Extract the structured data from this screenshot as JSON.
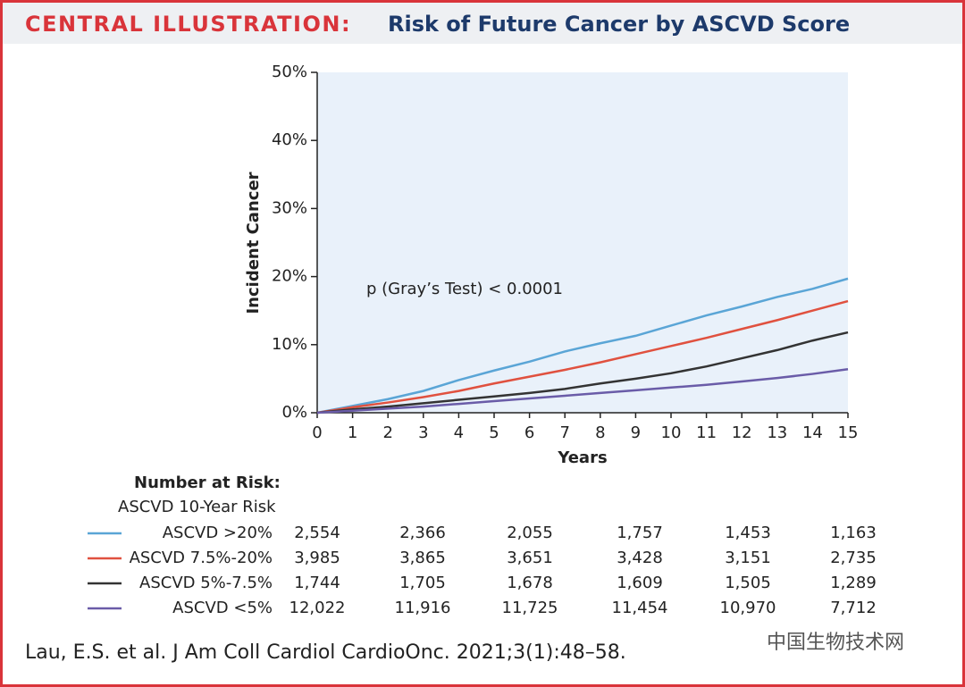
{
  "chart_data": {
    "type": "line",
    "title_label": "CENTRAL ILLUSTRATION:",
    "title": "Risk of Future Cancer by ASCVD Score",
    "x_label": "Years",
    "y_label": "Incident Cancer",
    "annotation": "p (Gray’s Test) < 0.0001",
    "x": [
      0,
      1,
      2,
      3,
      4,
      5,
      6,
      7,
      8,
      9,
      10,
      11,
      12,
      13,
      14,
      15
    ],
    "xlim": [
      0,
      15
    ],
    "xticks": [
      0,
      1,
      2,
      3,
      4,
      5,
      6,
      7,
      8,
      9,
      10,
      11,
      12,
      13,
      14,
      15
    ],
    "ylim": [
      0,
      50
    ],
    "yticks": [
      {
        "value": 0,
        "label": "0%"
      },
      {
        "value": 10,
        "label": "10%"
      },
      {
        "value": 20,
        "label": "20%"
      },
      {
        "value": 30,
        "label": "30%"
      },
      {
        "value": 40,
        "label": "40%"
      },
      {
        "value": 50,
        "label": "50%"
      }
    ],
    "series": [
      {
        "name": "ASCVD >20%",
        "color": "#5aa5d6",
        "values": [
          0,
          1.0,
          2.0,
          3.2,
          4.8,
          6.2,
          7.5,
          9.0,
          10.2,
          11.3,
          12.8,
          14.3,
          15.6,
          17.0,
          18.2,
          19.7
        ]
      },
      {
        "name": "ASCVD 7.5%-20%",
        "color": "#e0513f",
        "values": [
          0,
          0.8,
          1.5,
          2.3,
          3.2,
          4.3,
          5.3,
          6.3,
          7.4,
          8.6,
          9.8,
          11.0,
          12.3,
          13.6,
          15.0,
          16.4
        ]
      },
      {
        "name": "ASCVD 5%-7.5%",
        "color": "#333333",
        "values": [
          0,
          0.5,
          0.9,
          1.4,
          1.9,
          2.4,
          2.9,
          3.5,
          4.3,
          5.0,
          5.8,
          6.8,
          8.0,
          9.2,
          10.6,
          11.8
        ]
      },
      {
        "name": "ASCVD <5%",
        "color": "#6a5ca8",
        "values": [
          0,
          0.3,
          0.6,
          0.9,
          1.3,
          1.7,
          2.1,
          2.5,
          2.9,
          3.3,
          3.7,
          4.1,
          4.6,
          5.1,
          5.7,
          6.4
        ]
      }
    ],
    "at_risk": {
      "title": "Number at Risk:",
      "subtitle": "ASCVD 10-Year Risk",
      "rows": [
        [
          "2,554",
          "2,366",
          "2,055",
          "1,757",
          "1,453",
          "1,163"
        ],
        [
          "3,985",
          "3,865",
          "3,651",
          "3,428",
          "3,151",
          "2,735"
        ],
        [
          "1,744",
          "1,705",
          "1,678",
          "1,609",
          "1,505",
          "1,289"
        ],
        [
          "12,022",
          "11,916",
          "11,725",
          "11,454",
          "10,970",
          "7,712"
        ]
      ]
    },
    "citation": "Lau, E.S. et al. J Am Coll Cardiol CardioOnc. 2021;3(1):48–58.",
    "watermark": "中国生物技术网"
  }
}
